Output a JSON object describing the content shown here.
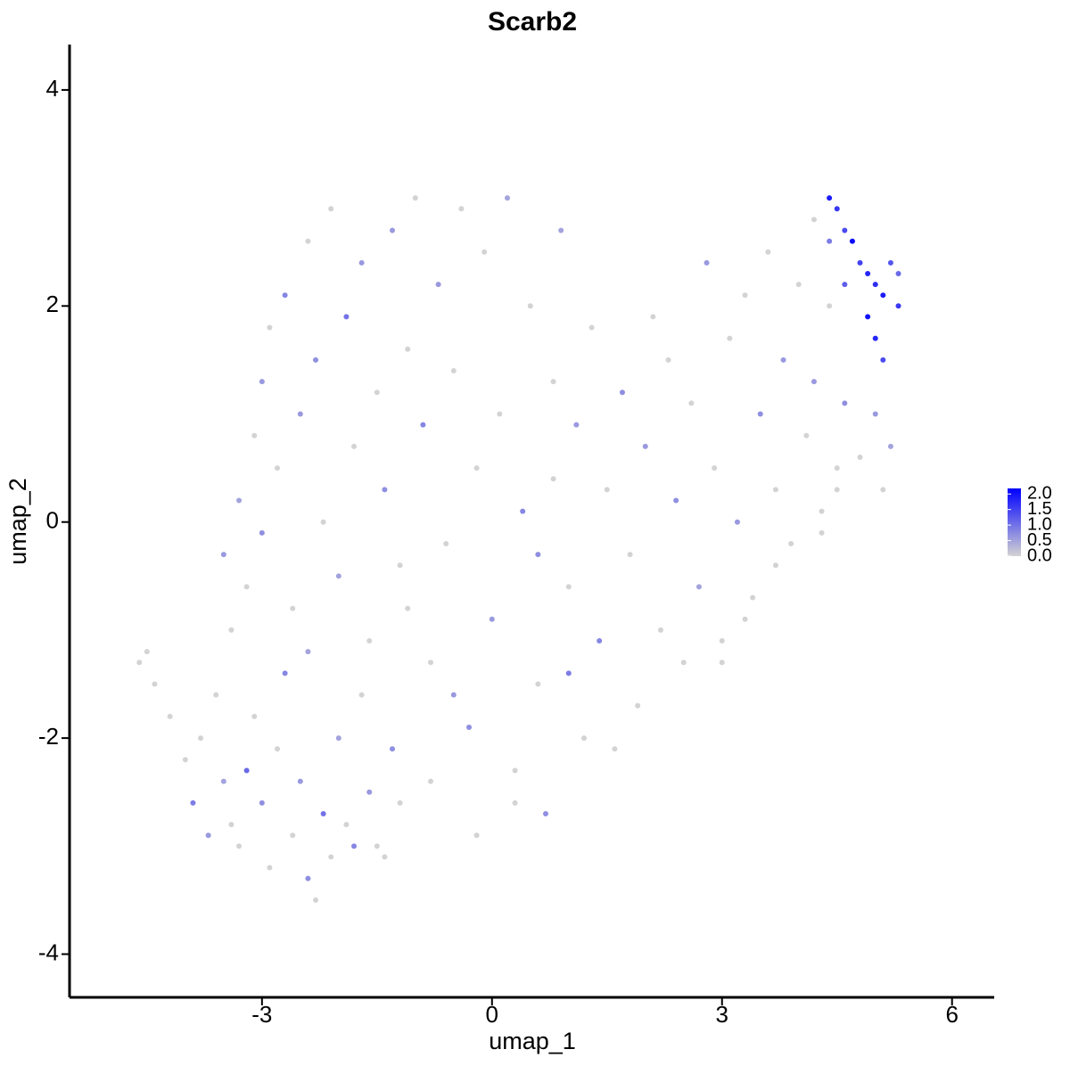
{
  "chart_data": {
    "type": "scatter",
    "title": "Scarb2",
    "x_label": "umap_1",
    "y_label": "umap_2",
    "xlim": [
      -5.51,
      6.55
    ],
    "ylim": [
      -4.4,
      4.42
    ],
    "xticks": [
      -3,
      0,
      3,
      6
    ],
    "yticks": [
      -4,
      -2,
      0,
      2,
      4
    ],
    "colors": [
      "#d3d3d3",
      "#0000ff"
    ],
    "colorbar_lim": [
      0,
      2.18
    ],
    "colorbar_ticks": [
      {
        "value": 0,
        "label": "0.0"
      },
      {
        "value": 0.5,
        "label": "0.5"
      },
      {
        "value": 1,
        "label": "1.0"
      },
      {
        "value": 1.5,
        "label": "1.5"
      },
      {
        "value": 2,
        "label": "2.0"
      }
    ],
    "x": [
      -4.6,
      -4.5,
      -4.4,
      -4.2,
      -4.0,
      -3.9,
      -3.8,
      -3.7,
      -3.6,
      -3.5,
      -3.4,
      -3.3,
      -3.2,
      -3.1,
      -3.0,
      -2.9,
      -2.8,
      -2.7,
      -2.6,
      -2.5,
      -2.4,
      -2.3,
      -2.2,
      -2.1,
      -2.0,
      -1.9,
      -1.8,
      -1.7,
      -1.6,
      -1.5,
      -1.4,
      -1.3,
      -1.2,
      -3.5,
      -3.4,
      -3.3,
      -3.2,
      -3.1,
      -3.0,
      -3.0,
      -2.9,
      -2.8,
      -2.7,
      -2.6,
      -2.5,
      -2.4,
      -2.3,
      -2.2,
      -2.1,
      -2.0,
      -1.9,
      -1.8,
      -1.7,
      -1.6,
      -1.5,
      -1.4,
      -1.3,
      -1.2,
      -1.1,
      -1.0,
      -0.9,
      -0.8,
      -0.7,
      -0.6,
      -0.5,
      -0.4,
      -0.3,
      -0.2,
      -0.1,
      0.0,
      0.1,
      0.2,
      0.3,
      0.4,
      0.5,
      0.6,
      0.7,
      0.8,
      0.9,
      1.0,
      1.1,
      1.2,
      1.3,
      1.4,
      1.5,
      1.6,
      1.7,
      1.8,
      1.9,
      2.0,
      2.1,
      2.2,
      2.3,
      2.4,
      2.5,
      2.6,
      2.7,
      2.8,
      2.9,
      3.0,
      3.1,
      3.2,
      3.3,
      3.4,
      3.5,
      3.6,
      3.7,
      3.8,
      3.9,
      4.0,
      4.1,
      4.2,
      4.3,
      4.4,
      4.5,
      4.6,
      4.8,
      5.0,
      5.2,
      5.1,
      3.0,
      3.3,
      3.7,
      4.3,
      4.5,
      -0.8,
      -0.5,
      0.3,
      0.6,
      -1.1,
      -2.4,
      -0.2,
      1.0,
      0.8,
      4.4,
      4.5,
      4.6,
      4.7,
      4.8,
      4.9,
      5.0,
      5.1,
      5.2,
      5.3,
      4.9,
      5.0,
      5.1,
      4.6,
      5.3,
      4.4,
      4.2
    ],
    "y": [
      -1.3,
      -1.2,
      -1.5,
      -1.8,
      -2.2,
      -2.6,
      -2.0,
      -2.9,
      -1.6,
      -2.4,
      -2.8,
      -3.0,
      -2.3,
      -1.8,
      -2.6,
      -3.2,
      -2.1,
      -1.4,
      -2.9,
      -2.4,
      -3.3,
      -3.5,
      -2.7,
      -3.1,
      -2.0,
      -2.8,
      -3.0,
      -1.6,
      -2.5,
      -3.0,
      -3.1,
      -2.1,
      -2.6,
      -0.3,
      -1.0,
      0.2,
      -0.6,
      0.8,
      -0.1,
      1.3,
      1.8,
      0.5,
      2.1,
      -0.8,
      1.0,
      2.6,
      1.5,
      0.0,
      2.9,
      -0.5,
      1.9,
      0.7,
      2.4,
      -1.1,
      1.2,
      0.3,
      2.7,
      -0.4,
      1.6,
      3.0,
      0.9,
      -1.3,
      2.2,
      -0.2,
      1.4,
      2.9,
      -1.9,
      0.5,
      2.5,
      -0.9,
      1.0,
      3.0,
      -2.3,
      0.1,
      2.0,
      -1.5,
      -2.7,
      1.3,
      2.7,
      -0.6,
      0.9,
      -2.0,
      1.8,
      -1.1,
      0.3,
      -2.1,
      1.2,
      -0.3,
      -1.7,
      0.7,
      1.9,
      -1.0,
      1.5,
      0.2,
      -1.3,
      1.1,
      -0.6,
      2.4,
      0.5,
      -1.1,
      1.7,
      0.0,
      2.1,
      -0.7,
      1.0,
      2.5,
      0.3,
      1.5,
      -0.2,
      2.2,
      0.8,
      1.3,
      0.1,
      2.0,
      0.5,
      1.1,
      0.6,
      1.0,
      0.7,
      0.3,
      -1.3,
      -0.9,
      -0.4,
      -0.1,
      0.3,
      -2.4,
      -1.6,
      -2.6,
      -0.3,
      -0.8,
      -1.2,
      -2.9,
      -1.4,
      0.4,
      3.0,
      2.9,
      2.7,
      2.6,
      2.4,
      2.3,
      2.2,
      2.1,
      2.4,
      2.0,
      1.9,
      1.7,
      1.5,
      2.2,
      2.3,
      2.6,
      2.8
    ],
    "expression": [
      0,
      0,
      0,
      0,
      0,
      0.9,
      0,
      0.6,
      0,
      0.5,
      0,
      0,
      1.1,
      0,
      0.7,
      0,
      0,
      0.8,
      0,
      0.6,
      0.7,
      0,
      1.0,
      0,
      0.5,
      0,
      0.8,
      0,
      0.6,
      0,
      0,
      0.7,
      0,
      0.6,
      0,
      0.5,
      0,
      0,
      0.7,
      0.6,
      0,
      0,
      0.8,
      0,
      0.6,
      0,
      0.7,
      0,
      0,
      0.5,
      1.0,
      0,
      0.6,
      0,
      0,
      0.7,
      0.6,
      0,
      0,
      0,
      0.8,
      0,
      0.6,
      0,
      0,
      0,
      0.7,
      0,
      0,
      0.6,
      0,
      0.5,
      0,
      0.8,
      0,
      0,
      0.7,
      0,
      0.5,
      0,
      0.6,
      0,
      0,
      0.8,
      0,
      0,
      0.7,
      0,
      0,
      0.6,
      0,
      0,
      0,
      0.7,
      0,
      0,
      0.5,
      0.6,
      0,
      0,
      0,
      0.6,
      0,
      0,
      0.7,
      0,
      0,
      0.6,
      0,
      0,
      0,
      0.6,
      0,
      0,
      0,
      0.7,
      0,
      0.6,
      0.5,
      0,
      0,
      0,
      0,
      0,
      0,
      0,
      0.6,
      0,
      0.7,
      0,
      0.5,
      0,
      0.9,
      0,
      1.9,
      1.6,
      1.4,
      2.1,
      1.5,
      1.8,
      1.7,
      1.9,
      1.3,
      1.6,
      2.0,
      1.8,
      1.4,
      1.2,
      1.1,
      0.9,
      0
    ]
  }
}
